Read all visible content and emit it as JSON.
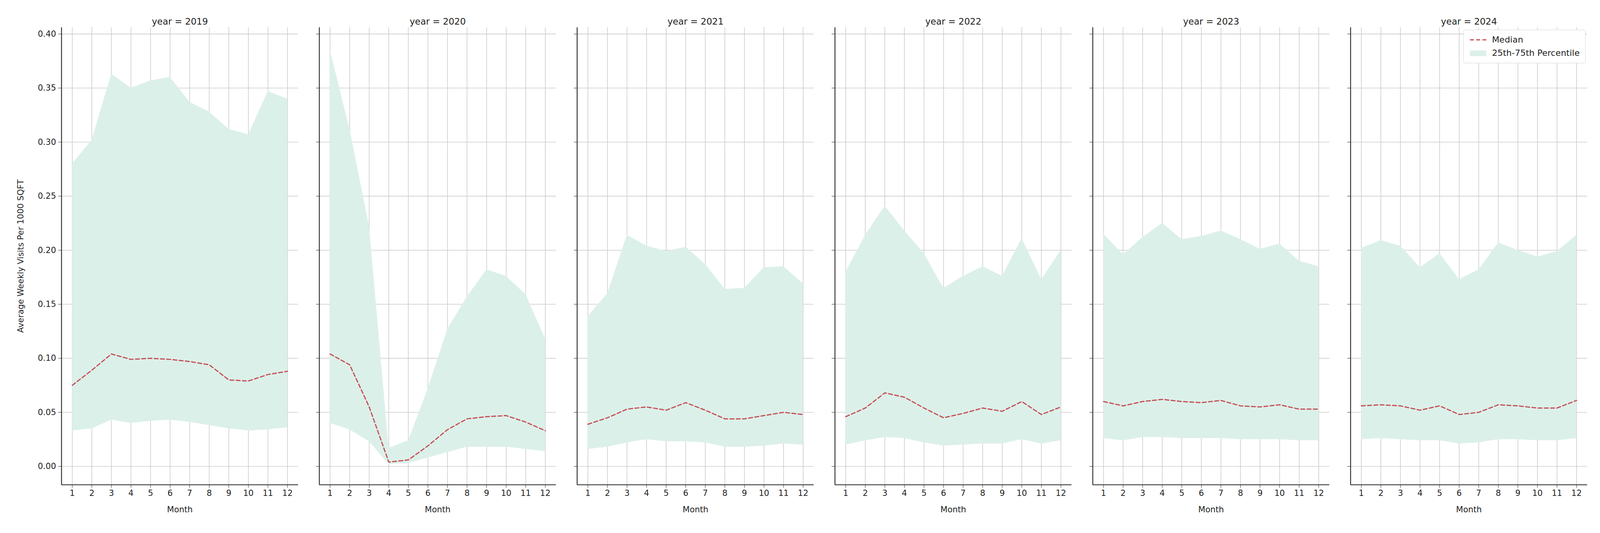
{
  "chart_data": [
    {
      "type": "line",
      "title": "year = 2019",
      "xlabel": "Month",
      "ylabel": "Average Weekly Visits Per 1000 SQFT",
      "x": [
        1,
        2,
        3,
        4,
        5,
        6,
        7,
        8,
        9,
        10,
        11,
        12
      ],
      "xlim": [
        0.45,
        12.55
      ],
      "xticks": [
        1,
        2,
        3,
        4,
        5,
        6,
        7,
        8,
        9,
        10,
        11,
        12
      ],
      "ylim": [
        -0.017,
        0.406
      ],
      "yticks": [
        {
          "value": 0,
          "label": "0.00"
        },
        {
          "value": 0.05,
          "label": "0.05"
        },
        {
          "value": 0.1,
          "label": "0.10"
        },
        {
          "value": 0.15,
          "label": "0.15"
        },
        {
          "value": 0.2,
          "label": "0.20"
        },
        {
          "value": 0.25,
          "label": "0.25"
        },
        {
          "value": 0.3,
          "label": "0.30"
        },
        {
          "value": 0.35,
          "label": "0.35"
        },
        {
          "value": 0.4,
          "label": "0.40"
        }
      ],
      "grid": true,
      "series": [
        {
          "name": "Median",
          "type": "line",
          "line_style": "dashed",
          "color": "#c44e52",
          "values": [
            0.075,
            0.089,
            0.104,
            0.099,
            0.1,
            0.099,
            0.097,
            0.094,
            0.08,
            0.079,
            0.085,
            0.088
          ]
        },
        {
          "name": "25th-75th Percentile",
          "type": "area",
          "color": "#dcf0ea",
          "lower": [
            0.033,
            0.035,
            0.043,
            0.04,
            0.042,
            0.043,
            0.041,
            0.038,
            0.035,
            0.033,
            0.034,
            0.036
          ],
          "upper": [
            0.28,
            0.302,
            0.363,
            0.35,
            0.357,
            0.36,
            0.337,
            0.328,
            0.312,
            0.307,
            0.347,
            0.34
          ]
        }
      ]
    },
    {
      "type": "line",
      "title": "year = 2020",
      "xlabel": "Month",
      "x": [
        1,
        2,
        3,
        4,
        5,
        6,
        7,
        8,
        9,
        10,
        11,
        12
      ],
      "xlim": [
        0.45,
        12.55
      ],
      "xticks": [
        1,
        2,
        3,
        4,
        5,
        6,
        7,
        8,
        9,
        10,
        11,
        12
      ],
      "ylim": [
        -0.017,
        0.406
      ],
      "yticks": [
        {
          "value": 0,
          "label": "0.00"
        },
        {
          "value": 0.05,
          "label": "0.05"
        },
        {
          "value": 0.1,
          "label": "0.10"
        },
        {
          "value": 0.15,
          "label": "0.15"
        },
        {
          "value": 0.2,
          "label": "0.20"
        },
        {
          "value": 0.25,
          "label": "0.25"
        },
        {
          "value": 0.3,
          "label": "0.30"
        },
        {
          "value": 0.35,
          "label": "0.35"
        },
        {
          "value": 0.4,
          "label": "0.40"
        }
      ],
      "grid": true,
      "tick_labels": "x",
      "series": [
        {
          "name": "Median",
          "type": "line",
          "line_style": "dashed",
          "color": "#c44e52",
          "values": [
            0.104,
            0.094,
            0.055,
            0.004,
            0.006,
            0.019,
            0.034,
            0.044,
            0.046,
            0.047,
            0.041,
            0.033
          ]
        },
        {
          "name": "25th-75th Percentile",
          "type": "area",
          "color": "#dcf0ea",
          "lower": [
            0.04,
            0.034,
            0.023,
            0.002,
            0.003,
            0.008,
            0.013,
            0.018,
            0.018,
            0.018,
            0.016,
            0.014
          ],
          "upper": [
            0.385,
            0.312,
            0.222,
            0.017,
            0.024,
            0.072,
            0.127,
            0.157,
            0.182,
            0.176,
            0.159,
            0.118
          ]
        }
      ]
    },
    {
      "type": "line",
      "title": "year = 2021",
      "xlabel": "Month",
      "x": [
        1,
        2,
        3,
        4,
        5,
        6,
        7,
        8,
        9,
        10,
        11,
        12
      ],
      "xlim": [
        0.45,
        12.55
      ],
      "xticks": [
        1,
        2,
        3,
        4,
        5,
        6,
        7,
        8,
        9,
        10,
        11,
        12
      ],
      "ylim": [
        -0.017,
        0.406
      ],
      "yticks": [
        {
          "value": 0,
          "label": "0.00"
        },
        {
          "value": 0.05,
          "label": "0.05"
        },
        {
          "value": 0.1,
          "label": "0.10"
        },
        {
          "value": 0.15,
          "label": "0.15"
        },
        {
          "value": 0.2,
          "label": "0.20"
        },
        {
          "value": 0.25,
          "label": "0.25"
        },
        {
          "value": 0.3,
          "label": "0.30"
        },
        {
          "value": 0.35,
          "label": "0.35"
        },
        {
          "value": 0.4,
          "label": "0.40"
        }
      ],
      "grid": true,
      "tick_labels": "x",
      "series": [
        {
          "name": "Median",
          "type": "line",
          "line_style": "dashed",
          "color": "#c44e52",
          "values": [
            0.039,
            0.045,
            0.053,
            0.055,
            0.052,
            0.059,
            0.052,
            0.044,
            0.044,
            0.047,
            0.05,
            0.048
          ]
        },
        {
          "name": "25th-75th Percentile",
          "type": "area",
          "color": "#dcf0ea",
          "lower": [
            0.016,
            0.018,
            0.022,
            0.025,
            0.023,
            0.023,
            0.022,
            0.018,
            0.018,
            0.019,
            0.021,
            0.02
          ],
          "upper": [
            0.139,
            0.16,
            0.214,
            0.204,
            0.199,
            0.203,
            0.187,
            0.164,
            0.165,
            0.184,
            0.185,
            0.169
          ]
        }
      ]
    },
    {
      "type": "line",
      "title": "year = 2022",
      "xlabel": "Month",
      "x": [
        1,
        2,
        3,
        4,
        5,
        6,
        7,
        8,
        9,
        10,
        11,
        12
      ],
      "xlim": [
        0.45,
        12.55
      ],
      "xticks": [
        1,
        2,
        3,
        4,
        5,
        6,
        7,
        8,
        9,
        10,
        11,
        12
      ],
      "ylim": [
        -0.017,
        0.406
      ],
      "yticks": [
        {
          "value": 0,
          "label": "0.00"
        },
        {
          "value": 0.05,
          "label": "0.05"
        },
        {
          "value": 0.1,
          "label": "0.10"
        },
        {
          "value": 0.15,
          "label": "0.15"
        },
        {
          "value": 0.2,
          "label": "0.20"
        },
        {
          "value": 0.25,
          "label": "0.25"
        },
        {
          "value": 0.3,
          "label": "0.30"
        },
        {
          "value": 0.35,
          "label": "0.35"
        },
        {
          "value": 0.4,
          "label": "0.40"
        }
      ],
      "grid": true,
      "tick_labels": "x",
      "series": [
        {
          "name": "Median",
          "type": "line",
          "line_style": "dashed",
          "color": "#c44e52",
          "values": [
            0.046,
            0.054,
            0.068,
            0.064,
            0.054,
            0.045,
            0.049,
            0.054,
            0.051,
            0.06,
            0.048,
            0.055
          ]
        },
        {
          "name": "25th-75th Percentile",
          "type": "area",
          "color": "#dcf0ea",
          "lower": [
            0.02,
            0.024,
            0.027,
            0.026,
            0.022,
            0.019,
            0.02,
            0.021,
            0.021,
            0.025,
            0.021,
            0.024
          ],
          "upper": [
            0.18,
            0.214,
            0.241,
            0.218,
            0.197,
            0.165,
            0.176,
            0.185,
            0.176,
            0.211,
            0.173,
            0.2
          ]
        }
      ]
    },
    {
      "type": "line",
      "title": "year = 2023",
      "xlabel": "Month",
      "x": [
        1,
        2,
        3,
        4,
        5,
        6,
        7,
        8,
        9,
        10,
        11,
        12
      ],
      "xlim": [
        0.45,
        12.55
      ],
      "xticks": [
        1,
        2,
        3,
        4,
        5,
        6,
        7,
        8,
        9,
        10,
        11,
        12
      ],
      "ylim": [
        -0.017,
        0.406
      ],
      "yticks": [
        {
          "value": 0,
          "label": "0.00"
        },
        {
          "value": 0.05,
          "label": "0.05"
        },
        {
          "value": 0.1,
          "label": "0.10"
        },
        {
          "value": 0.15,
          "label": "0.15"
        },
        {
          "value": 0.2,
          "label": "0.20"
        },
        {
          "value": 0.25,
          "label": "0.25"
        },
        {
          "value": 0.3,
          "label": "0.30"
        },
        {
          "value": 0.35,
          "label": "0.35"
        },
        {
          "value": 0.4,
          "label": "0.40"
        }
      ],
      "grid": true,
      "tick_labels": "x",
      "series": [
        {
          "name": "Median",
          "type": "line",
          "line_style": "dashed",
          "color": "#c44e52",
          "values": [
            0.06,
            0.056,
            0.06,
            0.062,
            0.06,
            0.059,
            0.061,
            0.056,
            0.055,
            0.057,
            0.053,
            0.053
          ]
        },
        {
          "name": "25th-75th Percentile",
          "type": "area",
          "color": "#dcf0ea",
          "lower": [
            0.026,
            0.024,
            0.027,
            0.027,
            0.026,
            0.026,
            0.026,
            0.025,
            0.025,
            0.025,
            0.024,
            0.024
          ],
          "upper": [
            0.215,
            0.196,
            0.212,
            0.225,
            0.21,
            0.213,
            0.218,
            0.21,
            0.201,
            0.206,
            0.19,
            0.185
          ]
        }
      ]
    },
    {
      "type": "line",
      "title": "year = 2024",
      "xlabel": "Month",
      "x": [
        1,
        2,
        3,
        4,
        5,
        6,
        7,
        8,
        9,
        10,
        11,
        12
      ],
      "xlim": [
        0.45,
        12.55
      ],
      "xticks": [
        1,
        2,
        3,
        4,
        5,
        6,
        7,
        8,
        9,
        10,
        11,
        12
      ],
      "ylim": [
        -0.017,
        0.406
      ],
      "yticks": [
        {
          "value": 0,
          "label": "0.00"
        },
        {
          "value": 0.05,
          "label": "0.05"
        },
        {
          "value": 0.1,
          "label": "0.10"
        },
        {
          "value": 0.15,
          "label": "0.15"
        },
        {
          "value": 0.2,
          "label": "0.20"
        },
        {
          "value": 0.25,
          "label": "0.25"
        },
        {
          "value": 0.3,
          "label": "0.30"
        },
        {
          "value": 0.35,
          "label": "0.35"
        },
        {
          "value": 0.4,
          "label": "0.40"
        }
      ],
      "grid": true,
      "tick_labels": "x",
      "legend": "upper right",
      "series": [
        {
          "name": "Median",
          "type": "line",
          "line_style": "dashed",
          "color": "#c44e52",
          "values": [
            0.056,
            0.057,
            0.056,
            0.052,
            0.056,
            0.048,
            0.05,
            0.057,
            0.056,
            0.054,
            0.054,
            0.061
          ]
        },
        {
          "name": "25th-75th Percentile",
          "type": "area",
          "color": "#dcf0ea",
          "lower": [
            0.025,
            0.026,
            0.025,
            0.024,
            0.024,
            0.021,
            0.022,
            0.025,
            0.025,
            0.024,
            0.024,
            0.026
          ],
          "upper": [
            0.202,
            0.209,
            0.204,
            0.184,
            0.197,
            0.173,
            0.182,
            0.207,
            0.2,
            0.194,
            0.199,
            0.214
          ]
        }
      ]
    }
  ]
}
